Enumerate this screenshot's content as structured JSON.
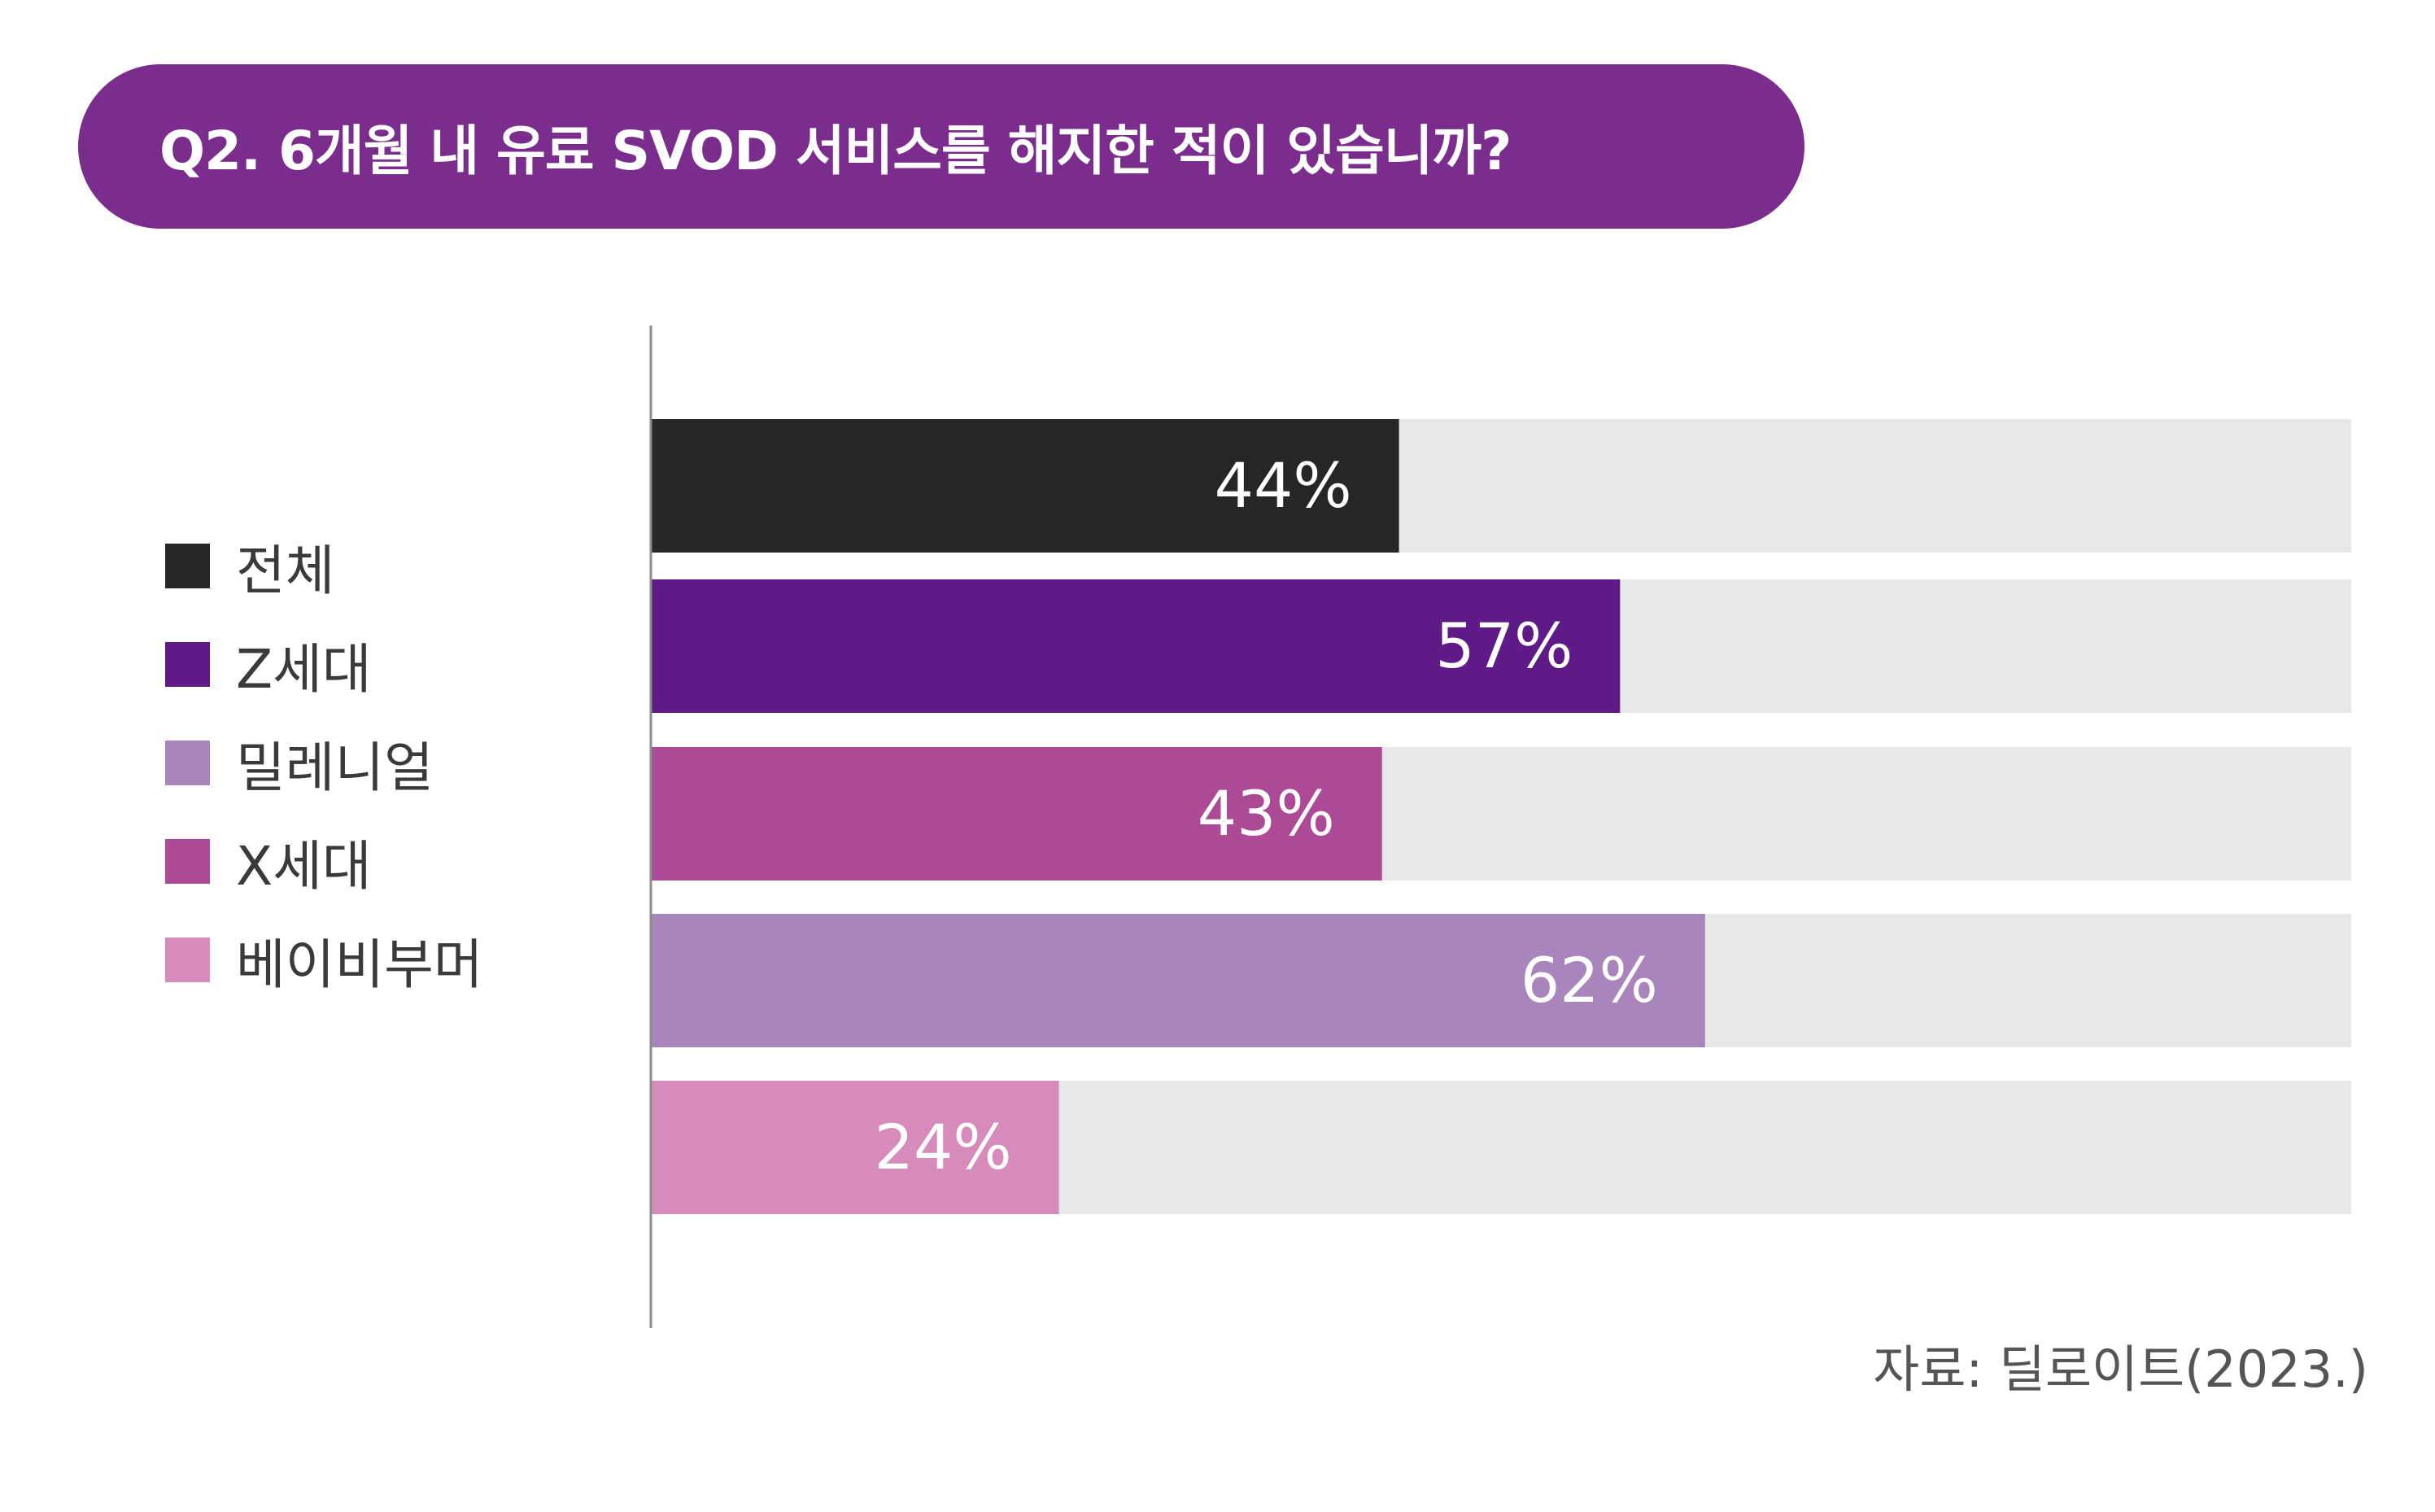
{
  "title": "Q2. 6개월 내 유료 SVOD 서비스를 해지한 적이 있습니까?",
  "colors": {
    "title_bg": "#7b2d8e",
    "track": "#e6e7e7",
    "axis": "#8c8c8c"
  },
  "legend": [
    {
      "label": "전체",
      "color": "#262626"
    },
    {
      "label": "Z세대",
      "color": "#5e1a86"
    },
    {
      "label": "밀레니얼",
      "color": "#a886bd"
    },
    {
      "label": "X세대",
      "color": "#ad4a95"
    },
    {
      "label": "베이비부머",
      "color": "#d68bbb"
    }
  ],
  "chart_data": {
    "type": "bar",
    "orientation": "horizontal",
    "xlim": [
      0,
      100
    ],
    "unit": "%",
    "categories": [
      "전체",
      "Z세대",
      "X세대",
      "밀레니얼",
      "베이비부머"
    ],
    "values": [
      44,
      57,
      43,
      62,
      24
    ],
    "colors": [
      "#262626",
      "#5e1a86",
      "#ad4a95",
      "#a886bd",
      "#d68bbb"
    ],
    "data_labels": [
      "44%",
      "57%",
      "43%",
      "62%",
      "24%"
    ]
  },
  "source": "자료: 딜로이트(2023.)"
}
